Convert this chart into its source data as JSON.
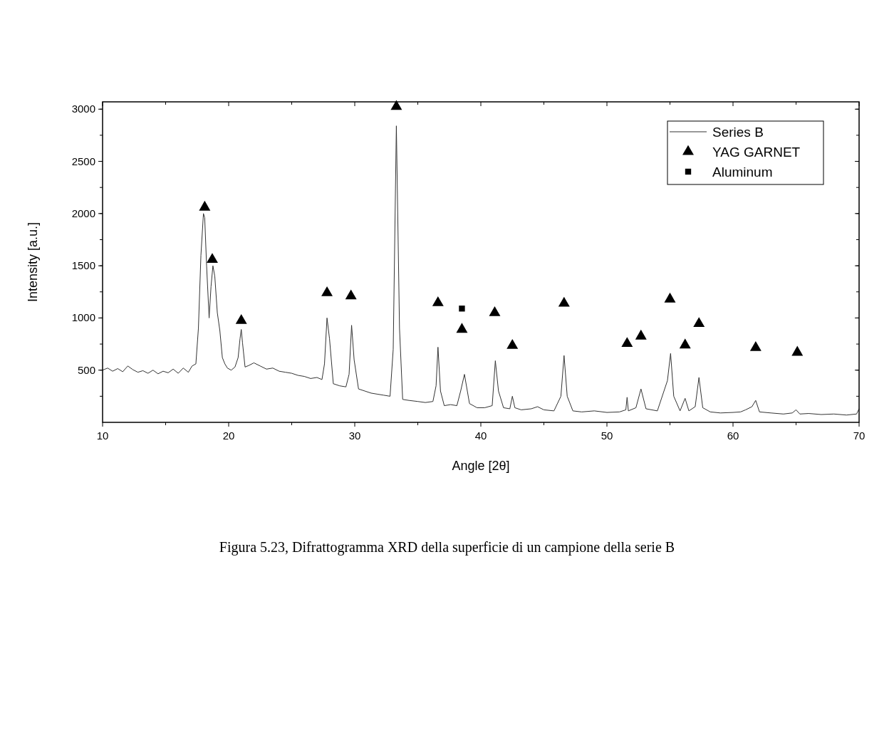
{
  "chart_data": {
    "type": "line",
    "xlabel": "Angle [2θ]",
    "ylabel": "Intensity [a.u.]",
    "xlim": [
      10,
      70
    ],
    "xticks": [
      10,
      20,
      30,
      40,
      50,
      60,
      70
    ],
    "ylim": [
      0,
      3070
    ],
    "yticks": [
      500,
      1000,
      1500,
      2000,
      2500,
      3000
    ],
    "legend": "top right",
    "grid": false,
    "annotations": [
      "Figura 5.23, Difrattogramma XRD della superficie di un campione della serie B"
    ],
    "series": [
      {
        "name": "Series B",
        "color": "#333333",
        "marker": "none",
        "line_style": "solid",
        "x": [
          10,
          10.4,
          10.8,
          11.2,
          11.6,
          12,
          12.4,
          12.8,
          13.2,
          13.6,
          14,
          14.4,
          14.8,
          15.2,
          15.6,
          16,
          16.4,
          16.8,
          17.1,
          17.4,
          17.6,
          17.8,
          18,
          18.1,
          18.25,
          18.45,
          18.6,
          18.75,
          18.9,
          19.1,
          19.3,
          19.5,
          19.7,
          19.9,
          20.2,
          20.5,
          20.75,
          20.9,
          21.0,
          21.1,
          21.3,
          21.6,
          22,
          22.5,
          23,
          23.5,
          24,
          24.5,
          25,
          25.5,
          26,
          26.5,
          27,
          27.4,
          27.6,
          27.8,
          28.0,
          28.3,
          28.8,
          29.3,
          29.55,
          29.75,
          29.95,
          30.3,
          30.8,
          31.3,
          31.8,
          32.3,
          32.8,
          33.05,
          33.3,
          33.55,
          33.8,
          34.3,
          35,
          35.6,
          36.2,
          36.45,
          36.6,
          36.8,
          37.1,
          37.6,
          38.1,
          38.4,
          38.7,
          39.1,
          39.7,
          40.3,
          40.9,
          41.15,
          41.4,
          41.8,
          42.3,
          42.5,
          42.7,
          43.2,
          44,
          44.5,
          45,
          45.8,
          46.35,
          46.6,
          46.85,
          47.3,
          48,
          49,
          50,
          51,
          51.5,
          51.6,
          51.7,
          52.3,
          52.7,
          53.1,
          54,
          54.8,
          55.05,
          55.3,
          55.8,
          56.2,
          56.5,
          57,
          57.3,
          57.6,
          58.2,
          59,
          60,
          60.6,
          61,
          61.5,
          61.8,
          62.1,
          63,
          64,
          64.7,
          65,
          65.3,
          66,
          67,
          68,
          69,
          69.8,
          70
        ],
        "values": [
          500,
          520,
          490,
          515,
          485,
          540,
          505,
          480,
          495,
          470,
          500,
          465,
          490,
          475,
          510,
          470,
          520,
          480,
          540,
          560,
          900,
          1600,
          2000,
          1960,
          1500,
          1000,
          1300,
          1500,
          1400,
          1050,
          880,
          620,
          560,
          520,
          500,
          530,
          620,
          800,
          890,
          760,
          530,
          545,
          570,
          540,
          510,
          520,
          490,
          480,
          470,
          450,
          440,
          420,
          430,
          410,
          560,
          1000,
          800,
          370,
          350,
          340,
          460,
          930,
          600,
          320,
          300,
          280,
          270,
          260,
          250,
          700,
          2840,
          900,
          220,
          210,
          200,
          190,
          200,
          350,
          720,
          300,
          160,
          170,
          160,
          300,
          460,
          180,
          140,
          140,
          160,
          590,
          300,
          140,
          130,
          250,
          140,
          120,
          130,
          150,
          120,
          110,
          250,
          640,
          250,
          110,
          100,
          110,
          95,
          100,
          120,
          240,
          110,
          140,
          320,
          130,
          110,
          400,
          660,
          250,
          110,
          230,
          110,
          150,
          430,
          140,
          100,
          90,
          95,
          100,
          120,
          150,
          210,
          100,
          90,
          80,
          90,
          120,
          80,
          85,
          75,
          80,
          70,
          80,
          130
        ]
      },
      {
        "name": "YAG GARNET",
        "type": "scatter",
        "color": "#000000",
        "marker": "triangle",
        "x": [
          18.1,
          18.7,
          21.0,
          27.8,
          29.7,
          33.3,
          36.6,
          38.5,
          41.1,
          42.5,
          46.6,
          51.6,
          52.7,
          55.0,
          56.2,
          57.3,
          61.8,
          65.1
        ],
        "values": [
          2060,
          1560,
          975,
          1240,
          1210,
          3025,
          1145,
          890,
          1050,
          735,
          1140,
          755,
          825,
          1180,
          740,
          945,
          715,
          670
        ]
      },
      {
        "name": "Aluminum",
        "type": "scatter",
        "color": "#000000",
        "marker": "square",
        "x": [
          38.5
        ],
        "values": [
          1090
        ]
      }
    ]
  }
}
